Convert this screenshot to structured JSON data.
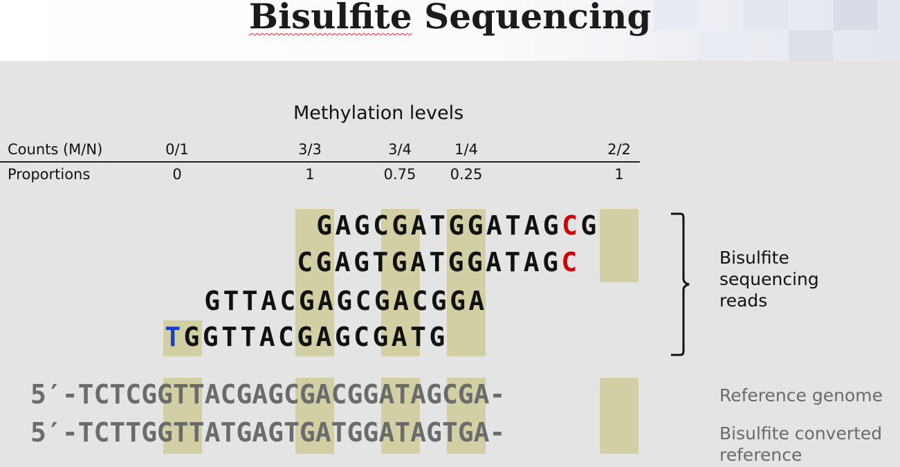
{
  "title_word1": "Bisulfite",
  "title_word2": "Sequencing",
  "section_title": "Methylation levels",
  "table": {
    "row1_label": "Counts (M/N)",
    "row2_label": "Proportions",
    "counts": [
      "0/1",
      "3/3",
      "3/4",
      "1/4",
      "2/2"
    ],
    "proportions": [
      "0",
      "1",
      "0.75",
      "0.25",
      "1"
    ]
  },
  "reads": [
    "GAGCGATGGATAGCG",
    "CGAGTGATGGATAGC",
    "GTTACGAGCGACGGA",
    "TGGTTACGAGCGATG"
  ],
  "reference": "5′-TCTCGGTTACGAGCGACGGATAGCGA-",
  "converted": "5′-TCTTGGTTATGAGTGATGGATAGTGA-",
  "labels": {
    "reads": [
      "Bisulfite",
      "sequencing",
      "reads"
    ],
    "reference": "Reference genome",
    "converted": [
      "Bisulfite converted",
      "reference"
    ]
  },
  "colors": {
    "methylated_c": "#d10000",
    "converted_t": "#1e3fc4",
    "cpg_highlight": "#d3cfa4",
    "reference_text": "#6b6b6b"
  }
}
